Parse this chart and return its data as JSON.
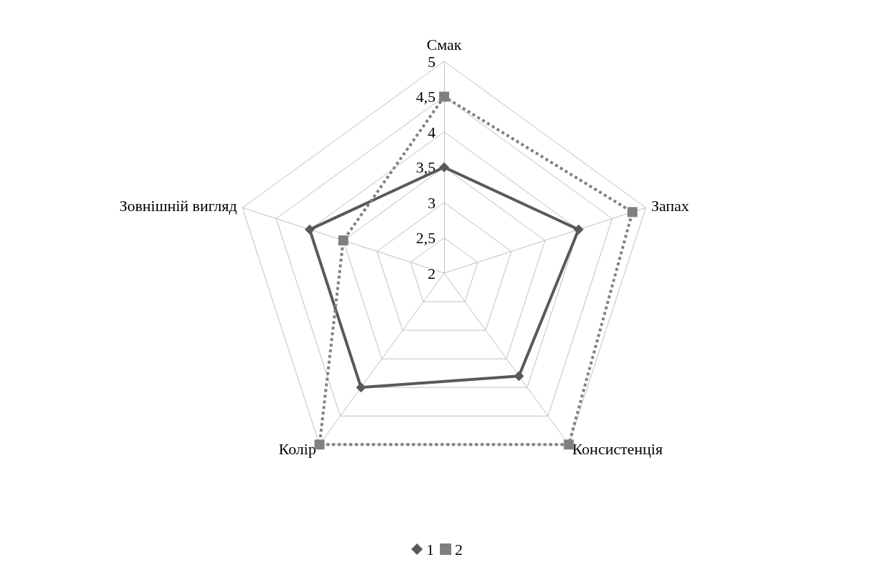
{
  "chart_data": {
    "type": "radar",
    "categories": [
      "Смак",
      "Запах",
      "Консистенція",
      "Колір",
      "Зовнішній вигляд"
    ],
    "series": [
      {
        "name": "1",
        "color": "#595959",
        "marker": "diamond",
        "line_style": "solid",
        "values": [
          3.5,
          4.0,
          3.8,
          4.0,
          4.0
        ]
      },
      {
        "name": "2",
        "color": "#808080",
        "marker": "square",
        "line_style": "dotted",
        "values": [
          4.5,
          4.8,
          5.0,
          5.0,
          3.5
        ]
      }
    ],
    "ylim": [
      2,
      5
    ],
    "yticks": [
      2,
      {
        "value": 2.5,
        "label": "2,5"
      },
      3,
      {
        "value": 3.5,
        "label": "3,5"
      },
      4,
      {
        "value": 4.5,
        "label": "4,5"
      },
      5
    ],
    "legend": "bottom"
  }
}
